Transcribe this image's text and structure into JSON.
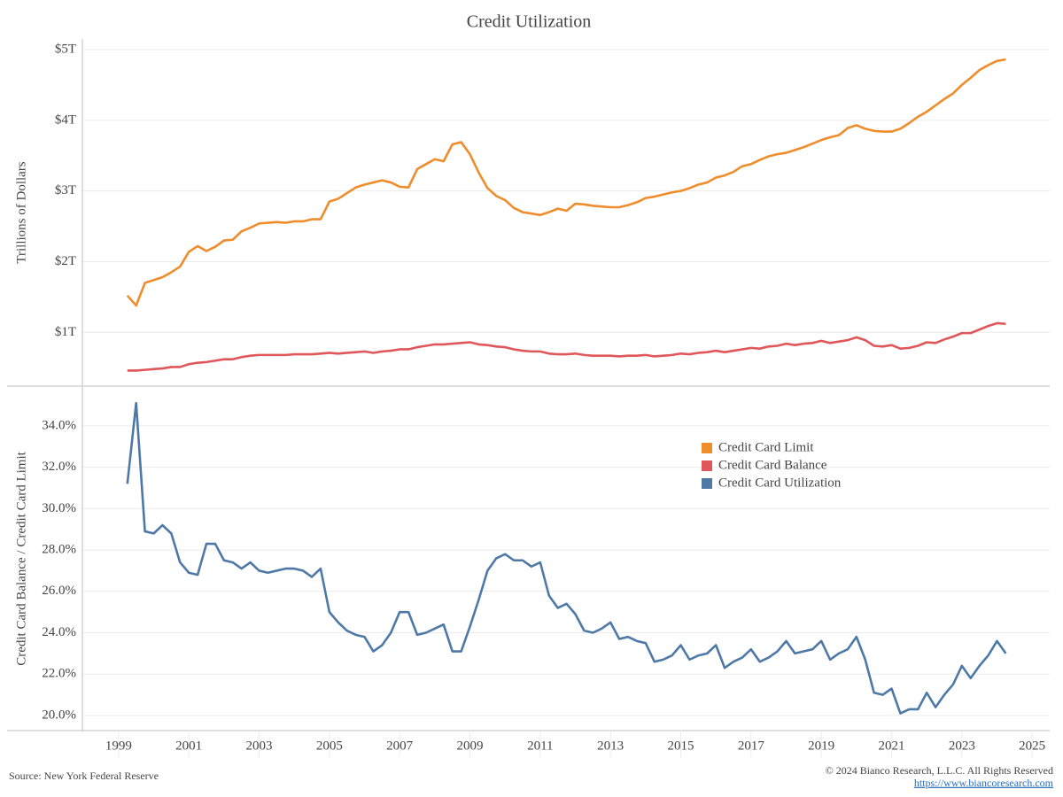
{
  "chart_data": [
    {
      "type": "line",
      "title": "Credit Utilization",
      "y_label": "Trillions of Dollars",
      "xlim": [
        1997.97,
        2025.5
      ],
      "ylim": [
        0.24,
        5.15
      ],
      "yticks": [
        {
          "value": 1,
          "label": "$1T"
        },
        {
          "value": 2,
          "label": "$2T"
        },
        {
          "value": 3,
          "label": "$3T"
        },
        {
          "value": 4,
          "label": "$4T"
        },
        {
          "value": 5,
          "label": "$5T"
        }
      ],
      "grid": true,
      "x": [
        1999.25,
        1999.5,
        1999.75,
        2000,
        2000.25,
        2000.5,
        2000.75,
        2001,
        2001.25,
        2001.5,
        2001.75,
        2002,
        2002.25,
        2002.5,
        2002.75,
        2003,
        2003.25,
        2003.5,
        2003.75,
        2004,
        2004.25,
        2004.5,
        2004.75,
        2005,
        2005.25,
        2005.5,
        2005.75,
        2006,
        2006.25,
        2006.5,
        2006.75,
        2007,
        2007.25,
        2007.5,
        2007.75,
        2008,
        2008.25,
        2008.5,
        2008.75,
        2009,
        2009.25,
        2009.5,
        2009.75,
        2010,
        2010.25,
        2010.5,
        2010.75,
        2011,
        2011.25,
        2011.5,
        2011.75,
        2012,
        2012.25,
        2012.5,
        2012.75,
        2013,
        2013.25,
        2013.5,
        2013.75,
        2014,
        2014.25,
        2014.5,
        2014.75,
        2015,
        2015.25,
        2015.5,
        2015.75,
        2016,
        2016.25,
        2016.5,
        2016.75,
        2017,
        2017.25,
        2017.5,
        2017.75,
        2018,
        2018.25,
        2018.5,
        2018.75,
        2019,
        2019.25,
        2019.5,
        2019.75,
        2020,
        2020.25,
        2020.5,
        2020.75,
        2021,
        2021.25,
        2021.5,
        2021.75,
        2022,
        2022.25,
        2022.5,
        2022.75,
        2023,
        2023.25,
        2023.5,
        2023.75,
        2024,
        2024.25
      ],
      "series": [
        {
          "name": "Credit Card Limit",
          "color": "#ef8c2b",
          "values": [
            1.52,
            1.38,
            1.7,
            1.74,
            1.78,
            1.85,
            1.93,
            2.14,
            2.22,
            2.15,
            2.21,
            2.3,
            2.31,
            2.43,
            2.48,
            2.54,
            2.55,
            2.56,
            2.55,
            2.57,
            2.57,
            2.6,
            2.6,
            2.85,
            2.89,
            2.97,
            3.05,
            3.09,
            3.12,
            3.15,
            3.12,
            3.06,
            3.05,
            3.31,
            3.38,
            3.45,
            3.42,
            3.66,
            3.69,
            3.52,
            3.26,
            3.04,
            2.93,
            2.87,
            2.76,
            2.7,
            2.68,
            2.66,
            2.7,
            2.75,
            2.72,
            2.82,
            2.81,
            2.79,
            2.78,
            2.77,
            2.77,
            2.8,
            2.84,
            2.9,
            2.92,
            2.95,
            2.98,
            3.0,
            3.04,
            3.09,
            3.12,
            3.19,
            3.22,
            3.27,
            3.35,
            3.38,
            3.44,
            3.49,
            3.52,
            3.54,
            3.58,
            3.62,
            3.67,
            3.72,
            3.76,
            3.79,
            3.89,
            3.93,
            3.88,
            3.85,
            3.84,
            3.84,
            3.88,
            3.96,
            4.05,
            4.12,
            4.21,
            4.3,
            4.38,
            4.5,
            4.6,
            4.71,
            4.78,
            4.84,
            4.86
          ]
        },
        {
          "name": "Credit Card Balance",
          "color": "#e05759",
          "values": [
            0.46,
            0.46,
            0.47,
            0.48,
            0.49,
            0.51,
            0.51,
            0.55,
            0.57,
            0.58,
            0.6,
            0.62,
            0.62,
            0.65,
            0.67,
            0.68,
            0.68,
            0.68,
            0.68,
            0.69,
            0.69,
            0.69,
            0.7,
            0.71,
            0.7,
            0.71,
            0.72,
            0.73,
            0.71,
            0.73,
            0.74,
            0.76,
            0.76,
            0.79,
            0.81,
            0.83,
            0.83,
            0.84,
            0.85,
            0.86,
            0.83,
            0.82,
            0.8,
            0.79,
            0.76,
            0.74,
            0.73,
            0.73,
            0.7,
            0.69,
            0.69,
            0.7,
            0.68,
            0.67,
            0.67,
            0.67,
            0.66,
            0.67,
            0.67,
            0.68,
            0.66,
            0.67,
            0.68,
            0.7,
            0.69,
            0.71,
            0.72,
            0.74,
            0.72,
            0.74,
            0.76,
            0.78,
            0.77,
            0.8,
            0.81,
            0.84,
            0.82,
            0.84,
            0.85,
            0.88,
            0.85,
            0.87,
            0.89,
            0.93,
            0.89,
            0.81,
            0.8,
            0.82,
            0.77,
            0.78,
            0.81,
            0.86,
            0.85,
            0.9,
            0.94,
            0.99,
            0.99,
            1.04,
            1.09,
            1.13,
            1.12
          ]
        }
      ]
    },
    {
      "type": "line",
      "y_label": "Credit Card Balance / Credit Card Limit",
      "xlim": [
        1997.97,
        2025.5
      ],
      "xticks": [
        1999,
        2001,
        2003,
        2005,
        2007,
        2009,
        2011,
        2013,
        2015,
        2017,
        2019,
        2021,
        2023,
        2025
      ],
      "ylim": [
        19.27,
        35.88
      ],
      "yticks": [
        {
          "value": 20,
          "label": "20.0%"
        },
        {
          "value": 22,
          "label": "22.0%"
        },
        {
          "value": 24,
          "label": "24.0%"
        },
        {
          "value": 26,
          "label": "26.0%"
        },
        {
          "value": 28,
          "label": "28.0%"
        },
        {
          "value": 30,
          "label": "30.0%"
        },
        {
          "value": 32,
          "label": "32.0%"
        },
        {
          "value": 34,
          "label": "34.0%"
        }
      ],
      "grid": true,
      "legend": "upper right",
      "x": [
        1999.25,
        1999.5,
        1999.75,
        2000,
        2000.25,
        2000.5,
        2000.75,
        2001,
        2001.25,
        2001.5,
        2001.75,
        2002,
        2002.25,
        2002.5,
        2002.75,
        2003,
        2003.25,
        2003.5,
        2003.75,
        2004,
        2004.25,
        2004.5,
        2004.75,
        2005,
        2005.25,
        2005.5,
        2005.75,
        2006,
        2006.25,
        2006.5,
        2006.75,
        2007,
        2007.25,
        2007.5,
        2007.75,
        2008,
        2008.25,
        2008.5,
        2008.75,
        2009,
        2009.25,
        2009.5,
        2009.75,
        2010,
        2010.25,
        2010.5,
        2010.75,
        2011,
        2011.25,
        2011.5,
        2011.75,
        2012,
        2012.25,
        2012.5,
        2012.75,
        2013,
        2013.25,
        2013.5,
        2013.75,
        2014,
        2014.25,
        2014.5,
        2014.75,
        2015,
        2015.25,
        2015.5,
        2015.75,
        2016,
        2016.25,
        2016.5,
        2016.75,
        2017,
        2017.25,
        2017.5,
        2017.75,
        2018,
        2018.25,
        2018.5,
        2018.75,
        2019,
        2019.25,
        2019.5,
        2019.75,
        2020,
        2020.25,
        2020.5,
        2020.75,
        2021,
        2021.25,
        2021.5,
        2021.75,
        2022,
        2022.25,
        2022.5,
        2022.75,
        2023,
        2023.25,
        2023.5,
        2023.75,
        2024,
        2024.25
      ],
      "series": [
        {
          "name": "Credit Card Utilization",
          "color": "#4e79a7",
          "values": [
            31.2,
            35.1,
            28.9,
            28.8,
            29.2,
            28.8,
            27.4,
            26.9,
            26.8,
            28.3,
            28.3,
            27.5,
            27.4,
            27.1,
            27.4,
            27.0,
            26.9,
            27.0,
            27.1,
            27.1,
            27.0,
            26.7,
            27.1,
            25.0,
            24.5,
            24.1,
            23.9,
            23.8,
            23.1,
            23.4,
            24.0,
            25.0,
            25.0,
            23.9,
            24.0,
            24.2,
            24.4,
            23.1,
            23.1,
            24.3,
            25.6,
            27.0,
            27.6,
            27.8,
            27.5,
            27.5,
            27.2,
            27.4,
            25.8,
            25.2,
            25.4,
            24.9,
            24.1,
            24.0,
            24.2,
            24.5,
            23.7,
            23.8,
            23.6,
            23.5,
            22.6,
            22.7,
            22.9,
            23.4,
            22.7,
            22.9,
            23.0,
            23.4,
            22.3,
            22.6,
            22.8,
            23.2,
            22.6,
            22.8,
            23.1,
            23.6,
            23.0,
            23.1,
            23.2,
            23.6,
            22.7,
            23.0,
            23.2,
            23.8,
            22.7,
            21.1,
            21.0,
            21.3,
            20.1,
            20.3,
            20.3,
            21.1,
            20.4,
            21.0,
            21.5,
            22.4,
            21.8,
            22.4,
            22.9,
            23.6,
            23.0
          ]
        }
      ]
    }
  ],
  "footer": {
    "source": "Source: New York Federal Reserve",
    "copyright": "© 2024 Bianco Research, L.L.C. All Rights Reserved",
    "url": "https://www.biancoresearch.com"
  }
}
